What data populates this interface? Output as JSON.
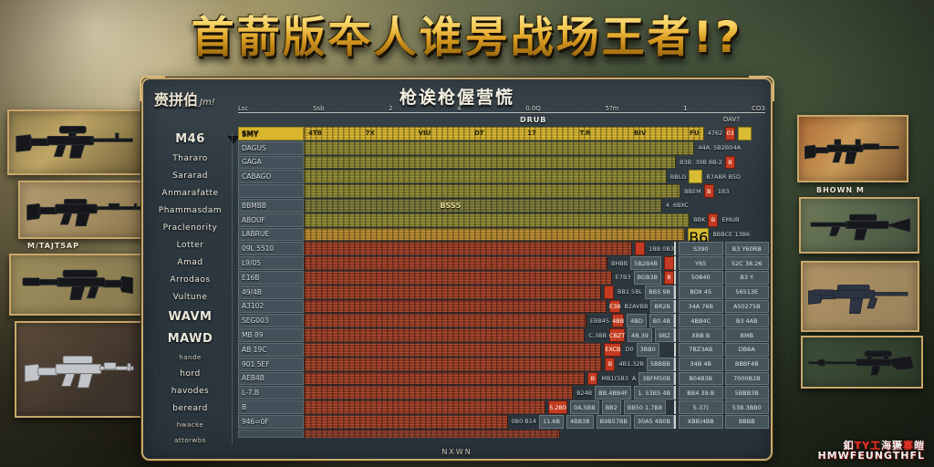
{
  "title": "首葥版夲人谁昘战场王者!?",
  "panel": {
    "title": "枪诶枪偓营慌",
    "corner_label": "赍拼伯",
    "corner_script": "Jm!",
    "axis_ticks": [
      "Lsc",
      "Ssb",
      "2",
      "4",
      "0.0Q",
      "5?m",
      "1",
      "CO3"
    ],
    "drub_label": "DRUB",
    "dav_label": "DAV?",
    "footer": "NXWN"
  },
  "weapon_names": [
    {
      "label": "M46",
      "big": true
    },
    {
      "label": "Thararo"
    },
    {
      "label": "Sararad"
    },
    {
      "label": "Anmarafatte"
    },
    {
      "label": "Phammasdam"
    },
    {
      "label": "Praclenority"
    },
    {
      "label": "Lotter"
    },
    {
      "label": "Amad"
    },
    {
      "label": "Arrodaos"
    },
    {
      "label": "Vultune"
    },
    {
      "label": "WAVM",
      "big": true
    },
    {
      "label": "MAWD",
      "big": true
    },
    {
      "label": "hande",
      "tiny": true
    },
    {
      "label": "hord"
    },
    {
      "label": "havodes"
    },
    {
      "label": "bereard"
    },
    {
      "label": "hwacke",
      "tiny": true
    },
    {
      "label": "attorwbs",
      "tiny": true
    }
  ],
  "chart_data": {
    "type": "bar",
    "orientation": "horizontal",
    "title": "枪诶枪偓营慌",
    "note": "garbled AI-generated weapon-stat comparison; bar lengths in % of track",
    "rows": [
      {
        "label": "SMY",
        "color": "bright",
        "pct": 86,
        "labelbar": true,
        "inner": [
          "4TB",
          "7X",
          "VIU",
          "DT",
          "17",
          "T.R",
          "BIV",
          "FU"
        ],
        "cells": [
          {
            "t": "4762",
            "k": "txt"
          },
          {
            "t": "03",
            "k": "rchip"
          },
          {
            "t": "",
            "k": "ychip"
          }
        ]
      },
      {
        "label": "DAGUS",
        "color": "olive",
        "pct": 84,
        "cells": [
          {
            "t": "44A. 5B2B04A",
            "k": "txt"
          }
        ]
      },
      {
        "label": "GAGA",
        "color": "olive",
        "pct": 80,
        "cells": [
          {
            "t": "B3B",
            "k": "txt"
          },
          {
            "t": "39B 8B-2",
            "k": "txt"
          },
          {
            "t": "B",
            "k": "rchip"
          }
        ]
      },
      {
        "label": "CABAGO",
        "color": "olive",
        "pct": 78,
        "cells": [
          {
            "t": "BBLG",
            "k": "txt"
          },
          {
            "t": "",
            "k": "ychip"
          },
          {
            "t": "B7ABR B5D",
            "k": "txt"
          }
        ]
      },
      {
        "label": "",
        "color": "olive",
        "pct": 81,
        "cells": [
          {
            "t": "BBEM",
            "k": "txt"
          },
          {
            "t": "B",
            "k": "rchip"
          },
          {
            "t": "1B3",
            "k": "txt"
          }
        ]
      },
      {
        "label": "BBMBB",
        "color": "olivedim",
        "pct": 77,
        "inner_center": "BSS5",
        "cells": [
          {
            "t": "4",
            "k": "txt"
          },
          {
            "t": "6BXC",
            "k": "txt"
          }
        ]
      },
      {
        "label": "ABOUF",
        "color": "olive",
        "pct": 83,
        "cells": [
          {
            "t": "BBK",
            "k": "txt"
          },
          {
            "t": "B",
            "k": "rchip"
          },
          {
            "t": "EMUB",
            "k": "txt"
          }
        ]
      },
      {
        "label": "LABRUE",
        "color": "orange",
        "pct": 82,
        "cells": [
          {
            "t": "B6",
            "k": "ychip"
          },
          {
            "t": "BBBCE 13B6",
            "k": "txt"
          }
        ]
      },
      {
        "label": "09L 5510",
        "color": "red",
        "pct": 79,
        "cells": [
          {
            "t": "",
            "k": "rchip"
          },
          {
            "t": "1BB 0B3",
            "k": "txt"
          }
        ],
        "right2": [
          "S390",
          "B3 Y60RB"
        ]
      },
      {
        "label": "L9/05",
        "color": "red",
        "pct": 79,
        "cells": [
          {
            "t": "BHBB",
            "k": "txt"
          },
          {
            "t": "5B2B4B",
            "k": "cell"
          },
          {
            "t": "",
            "k": "rchip"
          }
        ],
        "right2": [
          "Y65",
          "52C 38.26"
        ]
      },
      {
        "label": "E16B",
        "color": "red",
        "pct": 79,
        "cells": [
          {
            "t": "E7B3",
            "k": "txt"
          },
          {
            "t": "BGB3B",
            "k": "cell"
          },
          {
            "t": "B",
            "k": "rchip"
          }
        ],
        "right2": [
          "50840",
          "B3 Y"
        ]
      },
      {
        "label": "49/4B",
        "color": "red",
        "pct": 79,
        "cells": [
          {
            "t": "",
            "k": "rchip"
          },
          {
            "t": "BB1 5BL",
            "k": "txt"
          },
          {
            "t": "BB5 9B",
            "k": "cell"
          }
        ],
        "right2": [
          "BOX 45",
          "56513E"
        ]
      },
      {
        "label": "A3102",
        "color": "red",
        "pct": 79,
        "cells": [
          {
            "t": "E3B",
            "k": "rchip"
          },
          {
            "t": "B2AVBB",
            "k": "txt"
          },
          {
            "t": "BR2B",
            "k": "cell"
          }
        ],
        "right2": [
          "34A 76B",
          "A50275B"
        ]
      },
      {
        "label": "SEG003",
        "color": "red",
        "pct": 72,
        "cells": [
          {
            "t": "EBB45",
            "k": "txt"
          },
          {
            "t": "4BB",
            "k": "rchip"
          },
          {
            "t": "4BD",
            "k": "cell"
          },
          {
            "t": "B0.4B",
            "k": "cell"
          }
        ],
        "right2": [
          "4BB4C",
          "B3 4AB"
        ]
      },
      {
        "label": "MB 89",
        "color": "red",
        "pct": 70,
        "cells": [
          {
            "t": "C.3BB",
            "k": "txt"
          },
          {
            "t": "CBZT",
            "k": "rchip"
          },
          {
            "t": "4B.39",
            "k": "cell"
          },
          {
            "t": "9BZ",
            "k": "cell"
          }
        ],
        "right2": [
          "XBB B",
          "BMB"
        ]
      },
      {
        "label": "AB 19C",
        "color": "red",
        "pct": 64,
        "cells": [
          {
            "t": "EXCB",
            "k": "rchip"
          },
          {
            "t": "D0",
            "k": "txt"
          },
          {
            "t": "3BB0",
            "k": "cell"
          }
        ],
        "right2": [
          "7BZ3AB",
          "DB6A"
        ]
      },
      {
        "label": "901 5EF",
        "color": "red",
        "pct": 67,
        "cells": [
          {
            "t": "B",
            "k": "rchip"
          },
          {
            "t": "4B1.32B",
            "k": "txt"
          },
          {
            "t": "5BBBB",
            "k": "cell"
          }
        ],
        "right2": [
          "34B 4B",
          "BBBF4B"
        ]
      },
      {
        "label": "AEB4B",
        "color": "red",
        "pct": 61,
        "cells": [
          {
            "t": "B",
            "k": "rchip"
          },
          {
            "t": "MB1(5B3",
            "k": "txt"
          },
          {
            "t": "A",
            "k": "txt"
          },
          {
            "t": "3BFM50B",
            "k": "cell"
          }
        ],
        "right2": [
          "B04B3B",
          "7000B2B"
        ]
      },
      {
        "label": "L-7.B",
        "color": "red",
        "pct": 58,
        "cells": [
          {
            "t": "B24B",
            "k": "txt"
          },
          {
            "t": "BB.4BB4F",
            "k": "cell"
          },
          {
            "t": "1. 53B5 4B",
            "k": "cell"
          }
        ],
        "right2": [
          "BB4 39.B",
          "5BBB3B"
        ]
      },
      {
        "label": "B",
        "color": "red",
        "pct": 52,
        "cells": [
          {
            "t": "5.2B0",
            "k": "rchip"
          },
          {
            "t": "0A.5BB",
            "k": "cell"
          },
          {
            "t": "BB2",
            "k": "cell"
          },
          {
            "t": "BB50 1.7B8",
            "k": "cell"
          }
        ],
        "right2": [
          "5-37)",
          "53B.3BB0"
        ]
      },
      {
        "label": "946=0F",
        "color": "red",
        "pct": 50,
        "cells": [
          {
            "t": "0B0 B14",
            "k": "txt"
          },
          {
            "t": "11.6B",
            "k": "cell"
          },
          {
            "t": "4BB3B",
            "k": "cell"
          },
          {
            "t": "B9B57BB",
            "k": "cell"
          },
          {
            "t": "30A5 4B0B",
            "k": "cell"
          }
        ],
        "right2": [
          "XBB)4BB",
          "BBBB"
        ]
      },
      {
        "label": "",
        "color": "red",
        "pct": 55,
        "partial": true,
        "cells": []
      }
    ]
  },
  "gun_captions": {
    "left": "M/TAJT5AP",
    "right": "BHOWN M"
  },
  "watermark": {
    "line1": [
      {
        "t": "釦",
        "red": false
      },
      {
        "t": "TY工",
        "red": true
      },
      {
        "t": "海獗",
        "red": false
      },
      {
        "t": "寨",
        "red": true
      },
      {
        "t": "皚",
        "red": false
      }
    ],
    "line2": "HMWFEUNGTHFL"
  },
  "colors": {
    "title_gold": "#f6ce5a",
    "panel_border": "#caa76b",
    "panel_bg": "#2d383f",
    "bar_bright_yellow": "#dcb92f",
    "bar_olive": "#8f8a33",
    "bar_orange": "#bd8d2e",
    "bar_red": "#a23f25",
    "chip_yellow": "#d8bc34",
    "chip_red": "#c33b22",
    "cell_bg": "#46555c"
  }
}
